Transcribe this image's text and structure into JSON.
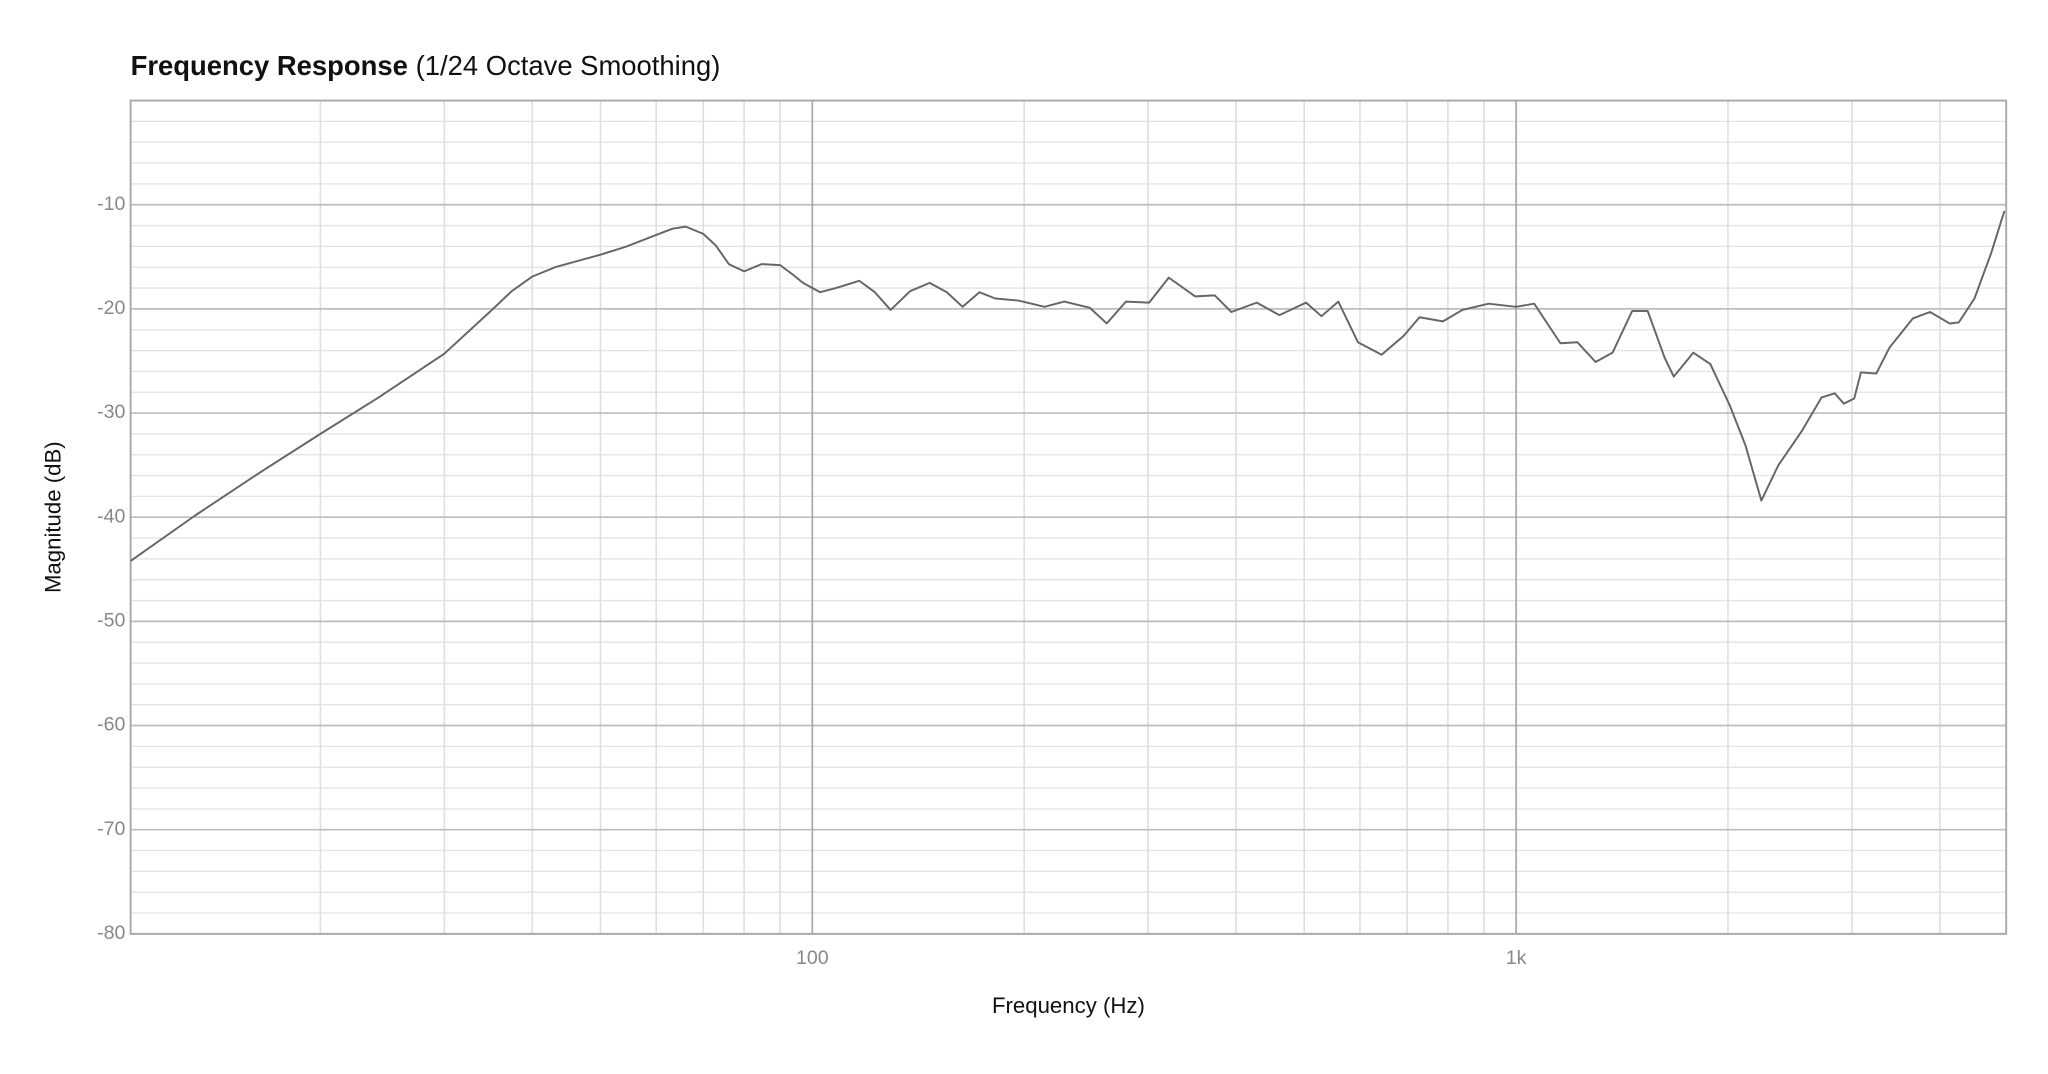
{
  "chart_data": {
    "type": "line",
    "title": "Frequency Response",
    "subtitle": "(1/24 Octave Smoothing)",
    "x_label": "Frequency (Hz)",
    "y_label": "Magnitude (dB)",
    "x_scale": "log",
    "grid": true,
    "xlim": [
      10.75,
      4970
    ],
    "ylim": [
      -80,
      0
    ],
    "xticks": [
      100,
      {
        "value": 1000,
        "label": "1k"
      }
    ],
    "xminorticks": [
      20,
      30,
      40,
      50,
      60,
      70,
      80,
      90,
      200,
      300,
      400,
      500,
      600,
      700,
      800,
      900,
      2000,
      3000,
      4000
    ],
    "yticks": [
      -80,
      -70,
      -60,
      -50,
      -40,
      -30,
      -20,
      -10
    ],
    "yminorticks": [
      -78,
      -76,
      -74,
      -72,
      -68,
      -66,
      -64,
      -62,
      -58,
      -56,
      -54,
      -52,
      -48,
      -46,
      -44,
      -42,
      -38,
      -36,
      -34,
      -32,
      -28,
      -26,
      -24,
      -22,
      -18,
      -16,
      -14,
      -12,
      -8,
      -6,
      -4,
      -2
    ],
    "x": [
      10.75,
      13.3,
      16.5,
      20,
      24.2,
      30,
      34.8,
      37.4,
      40,
      43.1,
      50,
      54.5,
      60,
      63.3,
      66.1,
      70,
      72.9,
      76.1,
      80,
      84.7,
      90,
      93.8,
      97,
      102.6,
      108,
      116.6,
      122.7,
      129.2,
      137.7,
      146.8,
      155.3,
      163.5,
      172.8,
      182,
      196.3,
      213.8,
      228,
      248,
      262,
      279,
      301,
      321,
      350,
      373,
      394,
      428,
      461,
      503,
      529,
      559,
      596,
      644,
      692,
      729,
      787,
      839,
      914,
      1000,
      1061,
      1156,
      1222,
      1297,
      1371,
      1462,
      1538,
      1626,
      1675,
      1786,
      1888,
      2013,
      2118,
      2231,
      2359,
      2548,
      2717,
      2836,
      2922,
      3023,
      3090,
      3250,
      3394,
      3664,
      3874,
      4130,
      4256,
      4480,
      4734,
      4941
    ],
    "series": [
      {
        "name": "Magnitude",
        "color": "#666666",
        "values": [
          -44.2,
          -39.8,
          -35.6,
          -32.0,
          -28.5,
          -24.3,
          -20.3,
          -18.3,
          -16.9,
          -16.0,
          -14.8,
          -14.0,
          -12.9,
          -12.3,
          -12.1,
          -12.8,
          -13.9,
          -15.7,
          -16.4,
          -15.7,
          -15.8,
          -16.7,
          -17.5,
          -18.4,
          -18.0,
          -17.3,
          -18.4,
          -20.1,
          -18.3,
          -17.5,
          -18.4,
          -19.8,
          -18.4,
          -19.0,
          -19.2,
          -19.8,
          -19.3,
          -19.9,
          -21.4,
          -19.3,
          -19.4,
          -17.0,
          -18.8,
          -18.7,
          -20.3,
          -19.4,
          -20.6,
          -19.4,
          -20.7,
          -19.3,
          -23.2,
          -24.4,
          -22.6,
          -20.8,
          -21.2,
          -20.1,
          -19.5,
          -19.8,
          -19.5,
          -23.3,
          -23.2,
          -25.1,
          -24.2,
          -20.2,
          -20.2,
          -24.7,
          -26.5,
          -24.2,
          -25.3,
          -29.3,
          -33.1,
          -38.4,
          -35.0,
          -31.7,
          -28.5,
          -28.1,
          -29.1,
          -28.6,
          -26.1,
          -26.2,
          -23.7,
          -20.9,
          -20.3,
          -21.4,
          -21.3,
          -19.0,
          -14.6,
          -10.6
        ]
      }
    ]
  }
}
